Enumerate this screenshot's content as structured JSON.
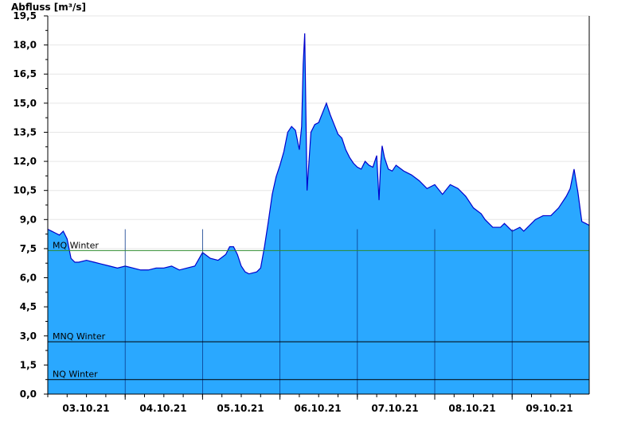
{
  "chart_data": {
    "type": "area",
    "ylabel": "Abfluss [m³/s]",
    "ylim": [
      0,
      19.5
    ],
    "y_ticks": [
      "0,0",
      "1,5",
      "3,0",
      "4,5",
      "6,0",
      "7,5",
      "9,0",
      "10,5",
      "12,0",
      "13,5",
      "15,0",
      "16,5",
      "18,0",
      "19,5"
    ],
    "x_ticks": [
      "03.10.21",
      "04.10.21",
      "05.10.21",
      "06.10.21",
      "07.10.21",
      "08.10.21",
      "09.10.21"
    ],
    "grid": true,
    "colors": {
      "fill": "#2aa8ff",
      "line": "#0000cc",
      "mq": "#2e8b2e",
      "ref": "#000000"
    },
    "reference_lines": [
      {
        "name": "MQ Winter",
        "value": 7.4
      },
      {
        "name": "MNQ Winter",
        "value": 2.7
      },
      {
        "name": "NQ Winter",
        "value": 0.75
      }
    ],
    "series": [
      {
        "x_days": [
          0,
          0.05,
          0.1,
          0.15,
          0.2,
          0.25,
          0.3,
          0.35,
          0.4,
          0.5,
          0.6,
          0.7,
          0.8,
          0.9,
          1.0,
          1.1,
          1.2,
          1.3,
          1.4,
          1.5,
          1.6,
          1.7,
          1.8,
          1.9,
          2.0,
          2.1,
          2.2,
          2.3,
          2.35,
          2.4,
          2.45,
          2.5,
          2.55,
          2.6,
          2.7,
          2.75,
          2.8,
          2.85,
          2.9,
          2.95,
          3.0,
          3.05,
          3.1,
          3.15,
          3.2,
          3.25,
          3.28,
          3.3,
          3.32,
          3.35,
          3.4,
          3.45,
          3.5,
          3.55,
          3.6,
          3.65,
          3.7,
          3.75,
          3.8,
          3.85,
          3.9,
          3.95,
          4.0,
          4.05,
          4.1,
          4.15,
          4.2,
          4.25,
          4.28,
          4.3,
          4.32,
          4.35,
          4.4,
          4.45,
          4.5,
          4.6,
          4.7,
          4.8,
          4.9,
          5.0,
          5.1,
          5.2,
          5.3,
          5.4,
          5.5,
          5.6,
          5.65,
          5.7,
          5.75,
          5.8,
          5.85,
          5.9,
          5.95,
          6.0,
          6.05,
          6.1,
          6.15,
          6.2,
          6.3,
          6.4,
          6.5,
          6.6,
          6.7,
          6.75,
          6.8,
          6.85,
          6.9,
          6.95,
          7.0
        ],
        "y": [
          8.5,
          8.4,
          8.3,
          8.2,
          8.4,
          8.0,
          7.0,
          6.8,
          6.8,
          6.9,
          6.8,
          6.7,
          6.6,
          6.5,
          6.6,
          6.5,
          6.4,
          6.4,
          6.5,
          6.5,
          6.6,
          6.4,
          6.5,
          6.6,
          7.3,
          7.0,
          6.9,
          7.2,
          7.6,
          7.6,
          7.2,
          6.6,
          6.3,
          6.2,
          6.3,
          6.5,
          7.6,
          8.9,
          10.3,
          11.2,
          11.8,
          12.5,
          13.5,
          13.8,
          13.6,
          12.6,
          13.8,
          17.0,
          18.6,
          10.5,
          13.5,
          13.9,
          14.0,
          14.5,
          15.0,
          14.4,
          13.9,
          13.4,
          13.2,
          12.6,
          12.2,
          11.9,
          11.7,
          11.6,
          12.0,
          11.8,
          11.7,
          12.3,
          10.0,
          11.8,
          12.8,
          12.2,
          11.6,
          11.5,
          11.8,
          11.5,
          11.3,
          11.0,
          10.6,
          10.8,
          10.3,
          10.8,
          10.6,
          10.2,
          9.6,
          9.3,
          9.0,
          8.8,
          8.6,
          8.6,
          8.6,
          8.8,
          8.6,
          8.4,
          8.5,
          8.6,
          8.4,
          8.6,
          9.0,
          9.2,
          9.2,
          9.6,
          10.2,
          10.6,
          11.6,
          10.4,
          8.9,
          8.8,
          8.7
        ]
      }
    ]
  }
}
